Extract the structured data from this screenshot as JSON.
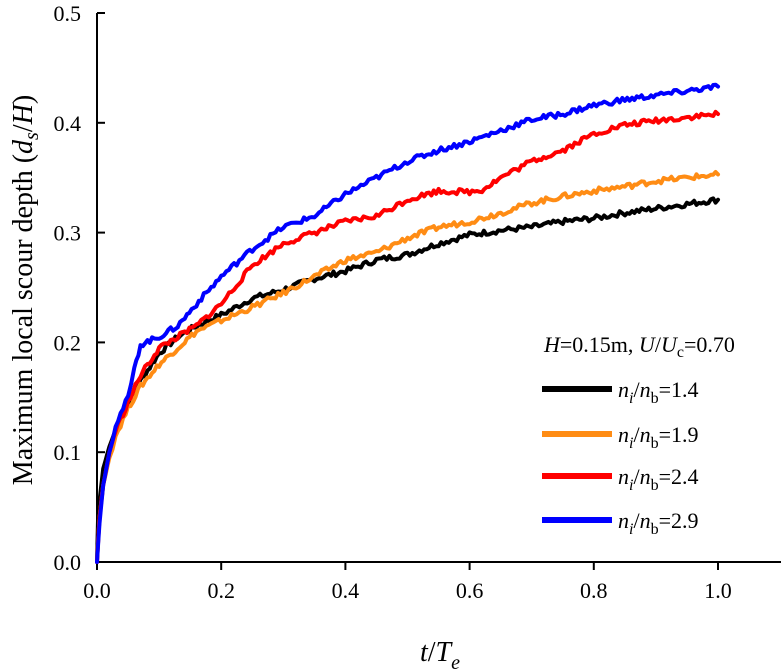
{
  "chart_data": {
    "type": "line",
    "xlabel": {
      "main": "t",
      "sep": "/",
      "main2": "T",
      "sub": "e"
    },
    "ylabel": {
      "prefix": "Maximum local scour depth (",
      "d": "d",
      "d_sub": "s",
      "sep": "/",
      "h": "H",
      "suffix": ")"
    },
    "xlim": [
      0,
      1.1
    ],
    "ylim": [
      0,
      0.5
    ],
    "xticks": [
      "0.0",
      "0.2",
      "0.4",
      "0.6",
      "0.8",
      "1.0"
    ],
    "yticks": [
      "0.0",
      "0.1",
      "0.2",
      "0.3",
      "0.4",
      "0.5"
    ],
    "legend_title": {
      "h": "H",
      "h_value": "=0.15m, ",
      "u": "U",
      "sep": "/",
      "uc": "U",
      "uc_sub": "c",
      "u_value": "=0.70"
    },
    "series": [
      {
        "name": "ni/nb=1.4",
        "label": {
          "n1": "n",
          "n1_sub": "i",
          "sep": "/",
          "n2": "n",
          "n2_sub": "b",
          "value": "=1.4"
        },
        "color": "#000000",
        "x": [
          0,
          0.002,
          0.01,
          0.02,
          0.03,
          0.05,
          0.07,
          0.1,
          0.13,
          0.16,
          0.2,
          0.25,
          0.3,
          0.35,
          0.4,
          0.45,
          0.5,
          0.55,
          0.6,
          0.65,
          0.7,
          0.75,
          0.8,
          0.85,
          0.9,
          0.95,
          1.0
        ],
        "values": [
          0.0,
          0.045,
          0.085,
          0.105,
          0.12,
          0.145,
          0.165,
          0.19,
          0.205,
          0.215,
          0.225,
          0.24,
          0.248,
          0.258,
          0.265,
          0.275,
          0.28,
          0.29,
          0.298,
          0.302,
          0.305,
          0.31,
          0.313,
          0.318,
          0.322,
          0.326,
          0.33
        ]
      },
      {
        "name": "ni/nb=1.9",
        "label": {
          "n1": "n",
          "n1_sub": "i",
          "sep": "/",
          "n2": "n",
          "n2_sub": "b",
          "value": "=1.9"
        },
        "color": "#ff8c14",
        "x": [
          0,
          0.004,
          0.01,
          0.02,
          0.03,
          0.05,
          0.07,
          0.1,
          0.13,
          0.16,
          0.2,
          0.25,
          0.3,
          0.35,
          0.4,
          0.45,
          0.5,
          0.55,
          0.6,
          0.65,
          0.7,
          0.75,
          0.8,
          0.85,
          0.9,
          0.95,
          1.0
        ],
        "values": [
          0.0,
          0.04,
          0.07,
          0.095,
          0.115,
          0.14,
          0.16,
          0.18,
          0.195,
          0.21,
          0.22,
          0.232,
          0.245,
          0.26,
          0.275,
          0.282,
          0.295,
          0.305,
          0.31,
          0.318,
          0.327,
          0.333,
          0.338,
          0.342,
          0.347,
          0.35,
          0.353
        ]
      },
      {
        "name": "ni/nb=2.4",
        "label": {
          "n1": "n",
          "n1_sub": "i",
          "sep": "/",
          "n2": "n",
          "n2_sub": "b",
          "value": "=2.4"
        },
        "color": "#ff0000",
        "x": [
          0,
          0.004,
          0.01,
          0.02,
          0.03,
          0.05,
          0.07,
          0.1,
          0.13,
          0.16,
          0.2,
          0.25,
          0.3,
          0.35,
          0.4,
          0.45,
          0.5,
          0.55,
          0.6,
          0.62,
          0.65,
          0.7,
          0.75,
          0.8,
          0.85,
          0.9,
          0.95,
          1.0
        ],
        "values": [
          0.0,
          0.04,
          0.07,
          0.1,
          0.12,
          0.145,
          0.17,
          0.195,
          0.205,
          0.215,
          0.235,
          0.27,
          0.29,
          0.3,
          0.31,
          0.315,
          0.33,
          0.338,
          0.337,
          0.339,
          0.35,
          0.365,
          0.375,
          0.39,
          0.398,
          0.402,
          0.405,
          0.408
        ]
      },
      {
        "name": "ni/nb=2.9",
        "label": {
          "n1": "n",
          "n1_sub": "i",
          "sep": "/",
          "n2": "n",
          "n2_sub": "b",
          "value": "=2.9"
        },
        "color": "#0000ff",
        "x": [
          0,
          0.004,
          0.01,
          0.02,
          0.03,
          0.05,
          0.06,
          0.07,
          0.1,
          0.13,
          0.16,
          0.2,
          0.25,
          0.3,
          0.35,
          0.4,
          0.45,
          0.5,
          0.55,
          0.6,
          0.65,
          0.7,
          0.75,
          0.8,
          0.85,
          0.9,
          0.95,
          1.0
        ],
        "values": [
          0.0,
          0.035,
          0.07,
          0.1,
          0.125,
          0.15,
          0.175,
          0.198,
          0.205,
          0.215,
          0.235,
          0.26,
          0.285,
          0.305,
          0.315,
          0.335,
          0.35,
          0.365,
          0.375,
          0.383,
          0.393,
          0.403,
          0.408,
          0.416,
          0.421,
          0.425,
          0.429,
          0.433
        ]
      }
    ]
  }
}
